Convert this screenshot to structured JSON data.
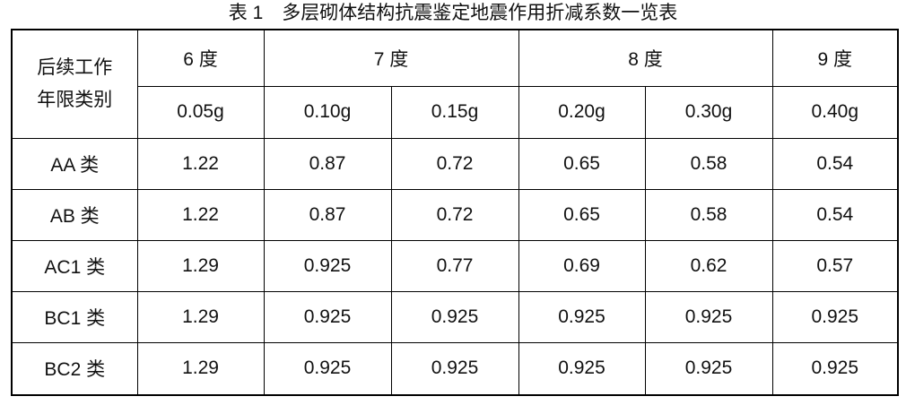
{
  "title": "表 1　多层砌体结构抗震鉴定地震作用折减系数一览表",
  "table": {
    "corner": [
      "后续工作",
      "年限类别"
    ],
    "groups": [
      {
        "label": "6 度",
        "span": 1
      },
      {
        "label": "7 度",
        "span": 2
      },
      {
        "label": "8 度",
        "span": 2
      },
      {
        "label": "9 度",
        "span": 1
      }
    ],
    "columns": [
      "0.05g",
      "0.10g",
      "0.15g",
      "0.20g",
      "0.30g",
      "0.40g"
    ],
    "rows": [
      {
        "label": "AA 类",
        "cells": [
          "1.22",
          "0.87",
          "0.72",
          "0.65",
          "0.58",
          "0.54"
        ]
      },
      {
        "label": "AB 类",
        "cells": [
          "1.22",
          "0.87",
          "0.72",
          "0.65",
          "0.58",
          "0.54"
        ]
      },
      {
        "label": "AC1 类",
        "cells": [
          "1.29",
          "0.925",
          "0.77",
          "0.69",
          "0.62",
          "0.57"
        ]
      },
      {
        "label": "BC1 类",
        "cells": [
          "1.29",
          "0.925",
          "0.925",
          "0.925",
          "0.925",
          "0.925"
        ]
      },
      {
        "label": "BC2 类",
        "cells": [
          "1.29",
          "0.925",
          "0.925",
          "0.925",
          "0.925",
          "0.925"
        ]
      }
    ]
  }
}
